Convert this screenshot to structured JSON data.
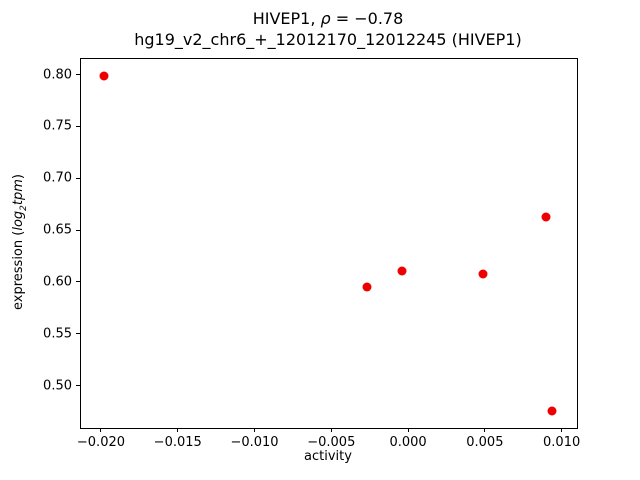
{
  "title": {
    "line1_pre": "HIVEP1, ",
    "line1_rho": "ρ",
    "line1_post": " = −0.78",
    "line2": "hg19_v2_chr6_+_12012170_12012245 (HIVEP1)"
  },
  "ylabel": {
    "prefix": "expression (",
    "math_log": "log",
    "math_sub": "2",
    "math_var": "tpm",
    "suffix": ")"
  },
  "chart_data": {
    "type": "scatter",
    "title": "HIVEP1, ρ = −0.78",
    "subtitle": "hg19_v2_chr6_+_12012170_12012245 (HIVEP1)",
    "xlabel": "activity",
    "ylabel": "expression (log2 tpm)",
    "marker_color": "#ee0000",
    "marker_size_px": 9,
    "grid": false,
    "legend": "none",
    "xlim": [
      -0.0213,
      0.011
    ],
    "ylim": [
      0.459,
      0.815
    ],
    "x_ticks": [
      {
        "v": -0.02,
        "label": "−0.020"
      },
      {
        "v": -0.015,
        "label": "−0.015"
      },
      {
        "v": -0.01,
        "label": "−0.010"
      },
      {
        "v": -0.005,
        "label": "−0.005"
      },
      {
        "v": 0.0,
        "label": "0.000"
      },
      {
        "v": 0.005,
        "label": "0.005"
      },
      {
        "v": 0.01,
        "label": "0.010"
      }
    ],
    "y_ticks": [
      {
        "v": 0.5,
        "label": "0.50"
      },
      {
        "v": 0.55,
        "label": "0.55"
      },
      {
        "v": 0.6,
        "label": "0.60"
      },
      {
        "v": 0.65,
        "label": "0.65"
      },
      {
        "v": 0.7,
        "label": "0.70"
      },
      {
        "v": 0.75,
        "label": "0.75"
      },
      {
        "v": 0.8,
        "label": "0.80"
      }
    ],
    "points": [
      {
        "x": -0.0198,
        "y": 0.799
      },
      {
        "x": -0.0027,
        "y": 0.595
      },
      {
        "x": -0.0004,
        "y": 0.61
      },
      {
        "x": 0.0049,
        "y": 0.608
      },
      {
        "x": 0.009,
        "y": 0.663
      },
      {
        "x": 0.0094,
        "y": 0.475
      }
    ]
  }
}
